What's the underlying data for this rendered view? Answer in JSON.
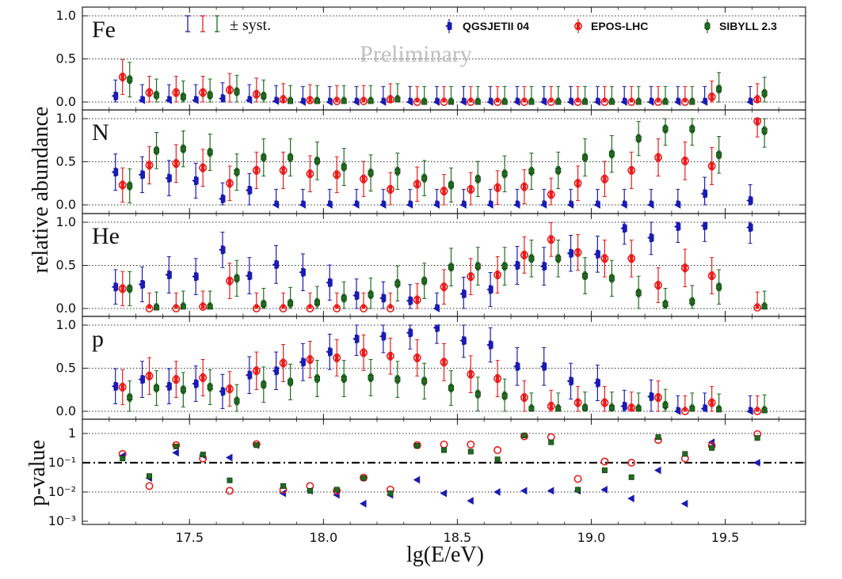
{
  "chart_data": {
    "type": "scatter",
    "colors": {
      "QGSJETII 04": "#1a1ab4",
      "EPOS-LHC": "#e81c1c",
      "SIBYLL 2.3": "#1f6b1f"
    },
    "xlabel": "lg(E/eV)",
    "ylabel": "relative abundance",
    "xlim": [
      17.1,
      19.8
    ],
    "xticks": [
      "17.5",
      "18.0",
      "18.5",
      "19.0",
      "19.5"
    ],
    "xtick_values": [
      17.5,
      18.0,
      18.5,
      19.0,
      19.5
    ],
    "yticks_abundance": [
      "0.0",
      "0.5",
      "1.0"
    ],
    "ylabel_pvalue": "p-value",
    "yticks_pvalue": [
      "1",
      "10⁻¹",
      "10⁻²",
      "10⁻³"
    ],
    "legend": {
      "syst_label": "± syst.",
      "preliminary": "Preliminary",
      "entries": [
        "QGSJETII 04",
        "EPOS-LHC",
        "SIBYLL 2.3"
      ]
    },
    "energy_bins": [
      17.25,
      17.35,
      17.45,
      17.55,
      17.65,
      17.75,
      17.85,
      17.95,
      18.05,
      18.15,
      18.25,
      18.35,
      18.45,
      18.55,
      18.65,
      18.75,
      18.85,
      18.95,
      19.05,
      19.15,
      19.25,
      19.35,
      19.45,
      19.62
    ],
    "panels": [
      {
        "name": "Fe",
        "series": [
          {
            "name": "QGSJETII 04",
            "values": [
              0.07,
              0.02,
              0.02,
              0.02,
              0.04,
              0.02,
              0.01,
              0.0,
              0.0,
              0.0,
              0.0,
              0.0,
              0.0,
              0.0,
              0.0,
              0.0,
              0.0,
              0.0,
              0.0,
              0.0,
              0.0,
              0.0,
              0.0,
              0.0
            ]
          },
          {
            "name": "EPOS-LHC",
            "values": [
              0.29,
              0.11,
              0.11,
              0.11,
              0.14,
              0.09,
              0.03,
              0.02,
              0.01,
              0.01,
              0.03,
              0.0,
              0.0,
              0.0,
              0.0,
              0.0,
              0.0,
              0.0,
              0.0,
              0.0,
              0.0,
              0.0,
              0.06,
              0.03
            ]
          },
          {
            "name": "SIBYLL 2.3",
            "values": [
              0.26,
              0.08,
              0.06,
              0.08,
              0.12,
              0.07,
              0.01,
              0.01,
              0.01,
              0.01,
              0.03,
              0.0,
              0.0,
              0.0,
              0.0,
              0.0,
              0.0,
              0.0,
              0.0,
              0.0,
              0.0,
              0.0,
              0.15,
              0.1
            ]
          }
        ]
      },
      {
        "name": "N",
        "series": [
          {
            "name": "QGSJETII 04",
            "values": [
              0.38,
              0.35,
              0.31,
              0.28,
              0.07,
              0.17,
              0.0,
              0.0,
              0.0,
              0.0,
              0.0,
              0.0,
              0.0,
              0.0,
              0.0,
              0.0,
              0.0,
              0.0,
              0.0,
              0.0,
              0.0,
              0.0,
              0.13,
              0.05
            ]
          },
          {
            "name": "EPOS-LHC",
            "values": [
              0.23,
              0.46,
              0.48,
              0.43,
              0.25,
              0.4,
              0.4,
              0.36,
              0.35,
              0.3,
              0.18,
              0.24,
              0.16,
              0.18,
              0.2,
              0.21,
              0.12,
              0.25,
              0.3,
              0.4,
              0.55,
              0.51,
              0.45,
              0.97
            ]
          },
          {
            "name": "SIBYLL 2.3",
            "values": [
              0.22,
              0.63,
              0.65,
              0.61,
              0.38,
              0.55,
              0.55,
              0.51,
              0.44,
              0.37,
              0.39,
              0.31,
              0.23,
              0.3,
              0.36,
              0.39,
              0.4,
              0.55,
              0.59,
              0.77,
              0.88,
              0.88,
              0.58,
              0.86
            ]
          }
        ]
      },
      {
        "name": "He",
        "series": [
          {
            "name": "QGSJETII 04",
            "values": [
              0.25,
              0.28,
              0.39,
              0.37,
              0.68,
              0.38,
              0.51,
              0.42,
              0.3,
              0.15,
              0.12,
              0.09,
              0.0,
              0.17,
              0.22,
              0.5,
              0.49,
              0.64,
              0.63,
              0.93,
              0.82,
              0.95,
              0.96,
              0.94
            ]
          },
          {
            "name": "EPOS-LHC",
            "values": [
              0.23,
              0.0,
              0.0,
              0.02,
              0.32,
              0.0,
              0.0,
              0.0,
              0.0,
              0.0,
              0.0,
              0.1,
              0.25,
              0.37,
              0.39,
              0.62,
              0.8,
              0.65,
              0.58,
              0.58,
              0.27,
              0.47,
              0.38,
              0.01
            ]
          },
          {
            "name": "SIBYLL 2.3",
            "values": [
              0.23,
              0.01,
              0.02,
              0.02,
              0.35,
              0.05,
              0.06,
              0.07,
              0.12,
              0.16,
              0.29,
              0.32,
              0.48,
              0.49,
              0.49,
              0.58,
              0.58,
              0.38,
              0.35,
              0.18,
              0.05,
              0.08,
              0.25,
              0.02
            ]
          }
        ]
      },
      {
        "name": "p",
        "series": [
          {
            "name": "QGSJETII 04",
            "values": [
              0.29,
              0.37,
              0.29,
              0.32,
              0.23,
              0.42,
              0.47,
              0.57,
              0.69,
              0.84,
              0.87,
              0.91,
              0.97,
              0.82,
              0.77,
              0.52,
              0.52,
              0.35,
              0.33,
              0.06,
              0.17,
              0.0,
              0.03,
              0.0
            ]
          },
          {
            "name": "EPOS-LHC",
            "values": [
              0.28,
              0.41,
              0.37,
              0.39,
              0.26,
              0.47,
              0.56,
              0.6,
              0.62,
              0.68,
              0.64,
              0.62,
              0.57,
              0.43,
              0.38,
              0.16,
              0.06,
              0.1,
              0.1,
              0.04,
              0.16,
              0.0,
              0.1,
              0.0
            ]
          },
          {
            "name": "SIBYLL 2.3",
            "values": [
              0.16,
              0.27,
              0.25,
              0.28,
              0.12,
              0.31,
              0.34,
              0.38,
              0.38,
              0.39,
              0.37,
              0.35,
              0.27,
              0.2,
              0.18,
              0.03,
              0.03,
              0.04,
              0.04,
              0.03,
              0.07,
              0.03,
              0.02,
              0.01
            ]
          }
        ]
      }
    ],
    "pvalue": {
      "threshold": 0.1,
      "series": [
        {
          "name": "QGSJETII 04",
          "values": [
            0.17,
            0.03,
            0.22,
            0.18,
            0.15,
            0.4,
            0.009,
            0.011,
            0.008,
            0.004,
            0.008,
            0.026,
            0.009,
            0.005,
            0.01,
            0.011,
            0.011,
            0.011,
            0.012,
            0.006,
            0.055,
            0.004,
            0.5,
            0.1
          ]
        },
        {
          "name": "EPOS-LHC",
          "values": [
            0.2,
            0.016,
            0.4,
            0.14,
            0.011,
            0.43,
            0.012,
            0.016,
            0.011,
            0.031,
            0.012,
            0.4,
            0.42,
            0.42,
            0.27,
            0.8,
            0.75,
            0.028,
            0.11,
            0.1,
            0.6,
            0.14,
            0.38,
            0.95
          ]
        },
        {
          "name": "SIBYLL 2.3",
          "values": [
            0.14,
            0.035,
            0.36,
            0.19,
            0.025,
            0.4,
            0.016,
            0.011,
            0.012,
            0.03,
            0.009,
            0.38,
            0.27,
            0.24,
            0.13,
            0.85,
            0.5,
            0.012,
            0.055,
            0.032,
            0.75,
            0.2,
            0.32,
            0.7
          ]
        }
      ]
    }
  }
}
